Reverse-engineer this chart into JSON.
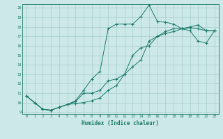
{
  "xlabel": "Humidex (Indice chaleur)",
  "bg_color": "#cce8e8",
  "grid_color": "#a8cece",
  "line_color": "#1a7a6a",
  "xlim": [
    -0.5,
    23.5
  ],
  "ylim": [
    8.8,
    20.4
  ],
  "yticks": [
    9,
    10,
    11,
    12,
    13,
    14,
    15,
    16,
    17,
    18,
    19,
    20
  ],
  "xticks": [
    0,
    1,
    2,
    3,
    4,
    5,
    6,
    7,
    8,
    9,
    10,
    11,
    12,
    13,
    14,
    15,
    16,
    17,
    18,
    19,
    20,
    21,
    22,
    23
  ],
  "line1_x": [
    0,
    1,
    2,
    3,
    4,
    5,
    6,
    7,
    8,
    9,
    10,
    11,
    12,
    13,
    14,
    15,
    16,
    17,
    18,
    19,
    20,
    21,
    22,
    23
  ],
  "line1_y": [
    10.7,
    10.0,
    9.3,
    9.2,
    9.5,
    9.8,
    10.2,
    11.3,
    12.5,
    13.3,
    17.8,
    18.3,
    18.3,
    18.3,
    19.1,
    20.3,
    18.6,
    18.5,
    18.3,
    17.8,
    17.9,
    17.8,
    17.6,
    17.6
  ],
  "line2_x": [
    0,
    1,
    2,
    3,
    4,
    5,
    6,
    7,
    8,
    9,
    10,
    11,
    12,
    13,
    14,
    15,
    16,
    17,
    18,
    19,
    20,
    21,
    22,
    23
  ],
  "line2_y": [
    10.7,
    10.0,
    9.3,
    9.2,
    9.5,
    9.8,
    10.1,
    11.0,
    11.0,
    11.3,
    12.3,
    12.5,
    13.0,
    15.0,
    15.8,
    16.0,
    17.0,
    17.3,
    17.5,
    17.8,
    18.0,
    18.2,
    17.6,
    17.6
  ],
  "line3_x": [
    0,
    1,
    2,
    3,
    4,
    5,
    6,
    7,
    8,
    9,
    10,
    11,
    12,
    13,
    14,
    15,
    16,
    17,
    18,
    19,
    20,
    21,
    22,
    23
  ],
  "line3_y": [
    10.7,
    10.0,
    9.3,
    9.2,
    9.5,
    9.8,
    9.9,
    10.0,
    10.2,
    10.5,
    11.3,
    11.8,
    13.0,
    13.8,
    14.5,
    16.5,
    17.0,
    17.5,
    17.8,
    17.8,
    17.6,
    16.5,
    16.3,
    17.6
  ]
}
